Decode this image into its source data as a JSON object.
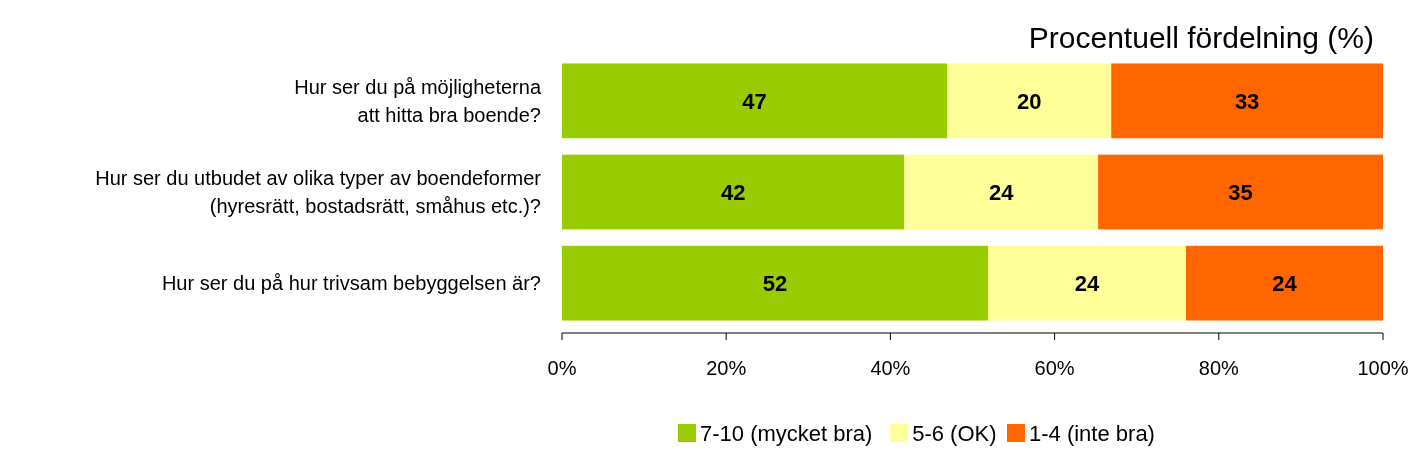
{
  "chart_data": {
    "type": "bar",
    "orientation": "horizontal",
    "stacked": true,
    "title": "Procentuell fördelning (%)",
    "categories": [
      "Hur ser du på möjligheterna\natt hitta bra boende?",
      "Hur ser du utbudet av olika typer av boendeformer\n(hyresrätt, bostadsrätt, småhus etc.)?",
      "Hur ser du på hur trivsam bebyggelsen är?"
    ],
    "series": [
      {
        "name": "7-10 (mycket bra)",
        "color": "#99cc00",
        "values": [
          46.9,
          41.7,
          51.9
        ],
        "value_labels": [
          "47",
          "42",
          "52"
        ]
      },
      {
        "name": "5-6 (OK)",
        "color": "#ffff99",
        "values": [
          20,
          23.6,
          24.1
        ],
        "value_labels": [
          "20",
          "24",
          "24"
        ]
      },
      {
        "name": "1-4 (inte bra)",
        "color": "#ff6600",
        "values": [
          33.1,
          34.7,
          24
        ],
        "value_labels": [
          "33",
          "35",
          "24"
        ]
      }
    ],
    "xlim": [
      0,
      100
    ],
    "xticks": [
      {
        "value": 0,
        "label": "0%"
      },
      {
        "value": 20,
        "label": "20%"
      },
      {
        "value": 40,
        "label": "40%"
      },
      {
        "value": 60,
        "label": "60%"
      },
      {
        "value": 80,
        "label": "80%"
      },
      {
        "value": 100,
        "label": "100%"
      }
    ],
    "grid": false,
    "legend": "bottom"
  }
}
